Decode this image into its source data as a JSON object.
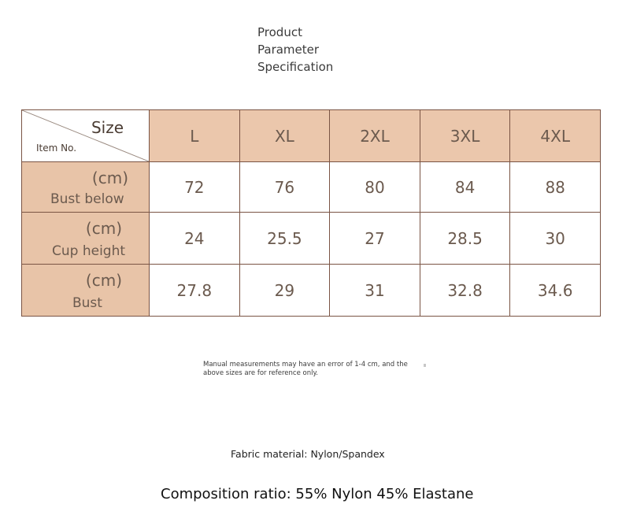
{
  "title": {
    "line1": "Product",
    "line2": "Parameter",
    "line3": "Specification"
  },
  "table": {
    "corner_top": "Size",
    "corner_bottom": "Item No.",
    "sizes": [
      "L",
      "XL",
      "2XL",
      "3XL",
      "4XL"
    ],
    "rows": [
      {
        "unit": "(cm)",
        "name": "Bust below",
        "values": [
          "72",
          "76",
          "80",
          "84",
          "88"
        ]
      },
      {
        "unit": "(cm)",
        "name": "Cup height",
        "values": [
          "24",
          "25.5",
          "27",
          "28.5",
          "30"
        ]
      },
      {
        "unit": "(cm)",
        "name": "Bust",
        "values": [
          "27.8",
          "29",
          "31",
          "32.8",
          "34.6"
        ]
      }
    ]
  },
  "note": {
    "line1": "Manual measurements may have an error of 1-4 cm, and the",
    "line2": "above sizes are for reference only."
  },
  "fabric": "Fabric material: Nylon/Spandex",
  "composition": "Composition ratio: 55% Nylon 45% Elastane",
  "colors": {
    "header_fill": "#ebc7ac",
    "border": "#7a5444",
    "text": "#6b5a4e"
  }
}
